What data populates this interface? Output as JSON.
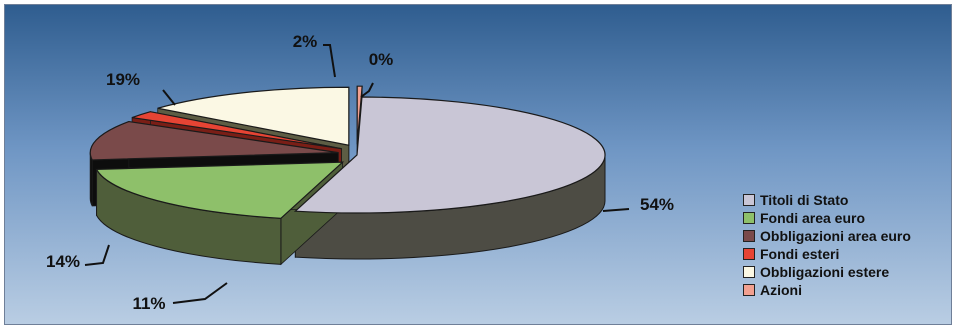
{
  "chart_data": {
    "type": "pie",
    "title": "",
    "slices": [
      {
        "label": "Titoli di Stato",
        "value": 54,
        "value_label": "54%",
        "color": "#c9c6d6",
        "side_color": "#4d4c44",
        "exploded": false
      },
      {
        "label": "Fondi area euro",
        "value": 19,
        "value_label": "19%",
        "color": "#8ec06a",
        "side_color": "#4f5e3a",
        "exploded": true
      },
      {
        "label": "Obbligazioni area euro",
        "value": 11,
        "value_label": "11%",
        "color": "#7a4a4a",
        "side_color": "#0d0d0d",
        "exploded": true
      },
      {
        "label": "Fondi esteri",
        "value": 2,
        "value_label": "2%",
        "color": "#e64434",
        "side_color": "#7a1e16",
        "exploded": true
      },
      {
        "label": "Obbligazioni estere",
        "value": 14,
        "value_label": "14%",
        "color": "#fbf8e4",
        "side_color": "#5d5d44",
        "exploded": true
      },
      {
        "label": "Azioni",
        "value": 0,
        "value_label": "0%",
        "color": "#f2a090",
        "side_color": "#8a5a50",
        "exploded": true
      }
    ],
    "legend": {
      "placement": "right",
      "items": [
        "Titoli di Stato",
        "Fondi area euro",
        "Obbligazioni area euro",
        "Fondi esteri",
        "Obbligazioni estere",
        "Azioni"
      ]
    },
    "style": {
      "background_top": "#2f5d8f",
      "background_bottom": "#b9cde3",
      "three_d": true
    }
  }
}
